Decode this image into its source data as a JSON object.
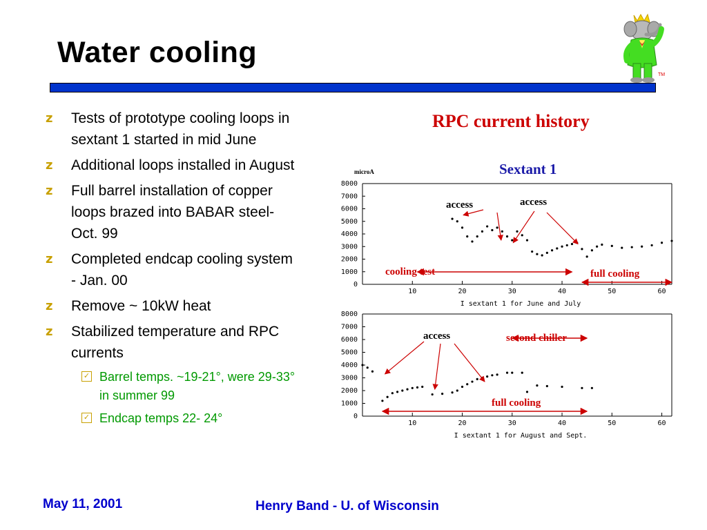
{
  "slide": {
    "title": "Water cooling",
    "logo": {
      "icon": "elephant-mascot-logo",
      "tm": "TM"
    },
    "bullets": [
      "Tests of prototype cooling loops in sextant 1 started in mid June",
      "Additional loops installed in August",
      "Full barrel installation of copper loops brazed into BABAR steel- Oct. 99",
      "Completed endcap cooling system - Jan. 00",
      "Remove ~ 10kW heat",
      "Stabilized temperature and RPC currents"
    ],
    "sub_bullets": [
      "Barrel temps. ~19-21°, were  29-33° in summer 99",
      "Endcap temps 22- 24°"
    ],
    "bullet_icon": "z-bullet-icon",
    "sub_bullet_icon": "checkbox-bullet-icon"
  },
  "chart_header": {
    "title": "RPC current history",
    "subtitle": "Sextant 1"
  },
  "chart_data": [
    {
      "type": "scatter",
      "ylabel": "microA",
      "xlabel": "I sextant 1 for June and July",
      "xlim": [
        0,
        62
      ],
      "ylim": [
        0,
        8000
      ],
      "xticks": [
        10,
        20,
        30,
        40,
        50,
        60
      ],
      "yticks": [
        0,
        1000,
        2000,
        3000,
        4000,
        5000,
        6000,
        7000,
        8000
      ],
      "series": [
        {
          "points": [
            [
              18,
              5200
            ],
            [
              19,
              5000
            ],
            [
              20,
              4500
            ],
            [
              21,
              3800
            ],
            [
              22,
              3400
            ],
            [
              23,
              3800
            ],
            [
              24,
              4200
            ],
            [
              25,
              4600
            ],
            [
              26,
              4300
            ],
            [
              27,
              4500
            ],
            [
              28,
              4200
            ],
            [
              29,
              3800
            ],
            [
              30,
              3500
            ],
            [
              31,
              4200
            ],
            [
              32,
              3900
            ],
            [
              33,
              3500
            ],
            [
              34,
              2600
            ],
            [
              35,
              2400
            ],
            [
              36,
              2300
            ],
            [
              37,
              2500
            ],
            [
              38,
              2700
            ],
            [
              39,
              2850
            ],
            [
              40,
              3000
            ],
            [
              41,
              3100
            ],
            [
              42,
              3200
            ],
            [
              43,
              3300
            ],
            [
              44,
              2800
            ],
            [
              45,
              2200
            ],
            [
              46,
              2700
            ],
            [
              47,
              3000
            ],
            [
              48,
              3150
            ],
            [
              50,
              3050
            ],
            [
              52,
              2900
            ],
            [
              54,
              2950
            ],
            [
              56,
              3000
            ],
            [
              58,
              3100
            ],
            [
              60,
              3300
            ],
            [
              62,
              3450
            ]
          ]
        }
      ],
      "annotations": [
        {
          "text": "access",
          "x": 20,
          "y": 6000
        },
        {
          "text": "access",
          "x": 35,
          "y": 6300
        },
        {
          "text": "cooling test",
          "x": 6,
          "y": 950,
          "span": [
            11,
            42
          ]
        },
        {
          "text": "full cooling",
          "x": 49,
          "y": 700,
          "span": [
            44,
            62
          ]
        }
      ]
    },
    {
      "type": "scatter",
      "xlabel": "I sextant 1 for August and Sept.",
      "xlim": [
        0,
        62
      ],
      "ylim": [
        0,
        8000
      ],
      "xticks": [
        10,
        20,
        30,
        40,
        50,
        60
      ],
      "yticks": [
        0,
        1000,
        2000,
        3000,
        4000,
        5000,
        6000,
        7000,
        8000
      ],
      "series": [
        {
          "points": [
            [
              0,
              4000
            ],
            [
              1,
              3800
            ],
            [
              2,
              3500
            ],
            [
              4,
              1200
            ],
            [
              5,
              1500
            ],
            [
              6,
              1800
            ],
            [
              7,
              1900
            ],
            [
              8,
              2000
            ],
            [
              9,
              2100
            ],
            [
              10,
              2200
            ],
            [
              11,
              2250
            ],
            [
              12,
              2300
            ],
            [
              14,
              1700
            ],
            [
              16,
              1750
            ],
            [
              18,
              1850
            ],
            [
              19,
              2000
            ],
            [
              20,
              2300
            ],
            [
              21,
              2500
            ],
            [
              22,
              2700
            ],
            [
              23,
              2900
            ],
            [
              24,
              3000
            ],
            [
              25,
              3100
            ],
            [
              26,
              3200
            ],
            [
              27,
              3250
            ],
            [
              29,
              3400
            ],
            [
              30,
              3400
            ],
            [
              32,
              3400
            ],
            [
              33,
              1900
            ],
            [
              35,
              2400
            ],
            [
              37,
              2350
            ],
            [
              40,
              2300
            ],
            [
              44,
              2200
            ],
            [
              46,
              2200
            ]
          ]
        }
      ],
      "annotations": [
        {
          "text": "access",
          "x": 15,
          "y": 6200
        },
        {
          "text": "second chiller",
          "x": 36,
          "y": 6000,
          "span": [
            30,
            45
          ]
        },
        {
          "text": "full cooling",
          "x": 30,
          "y": 1000,
          "span": [
            4,
            45
          ]
        }
      ]
    }
  ],
  "footer": {
    "date": "May 11, 2001",
    "author": "Henry Band -  U. of Wisconsin"
  },
  "colors": {
    "title_bar": "#0033cc",
    "annotation": "#cc0000",
    "subtitle": "#1a1aa8",
    "sub_bullet_text": "#009900",
    "footer": "#0000cc"
  }
}
